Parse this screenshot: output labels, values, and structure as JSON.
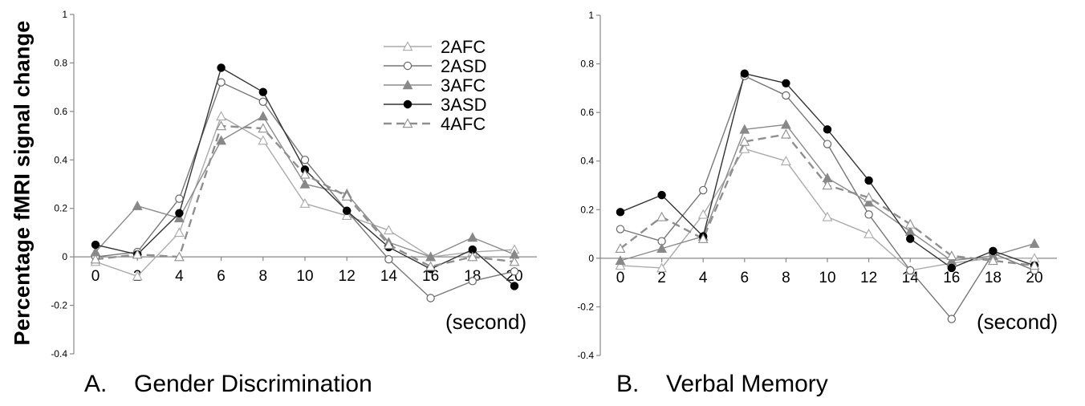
{
  "figure": {
    "ylabel": "Percentage fMRI signal change"
  },
  "chart_data": [
    {
      "type": "line",
      "panel_letter": "A.",
      "title": "Gender Discrimination",
      "xlabel": "(second)",
      "ylabel": "Percentage fMRI signal change",
      "xlim": [
        0,
        20
      ],
      "ylim": [
        -0.4,
        1
      ],
      "x_ticks": [
        0,
        2,
        4,
        6,
        8,
        10,
        12,
        14,
        16,
        18,
        20
      ],
      "y_ticks": [
        "-0.4",
        "-0.2",
        "0",
        "0.2",
        "0.4",
        "0.6",
        "0.8",
        "1"
      ],
      "grid": false,
      "legend_position": "top-right",
      "x": [
        0,
        2,
        4,
        6,
        8,
        10,
        12,
        14,
        16,
        18,
        20
      ],
      "series": [
        {
          "name": "2AFC",
          "marker": "triangle-open",
          "color": "#aaaaaa",
          "dashed": false,
          "values": [
            -0.02,
            -0.08,
            0.1,
            0.58,
            0.48,
            0.22,
            0.17,
            0.11,
            0.0,
            0.02,
            0.03
          ]
        },
        {
          "name": "2ASD",
          "marker": "circle-open",
          "color": "#777777",
          "dashed": false,
          "values": [
            0.0,
            0.02,
            0.24,
            0.72,
            0.64,
            0.4,
            0.19,
            -0.01,
            -0.17,
            -0.1,
            -0.06
          ]
        },
        {
          "name": "3AFC",
          "marker": "triangle-filled",
          "color": "#8a8a8a",
          "dashed": false,
          "values": [
            0.02,
            0.21,
            0.16,
            0.48,
            0.58,
            0.3,
            0.26,
            0.06,
            0.0,
            0.08,
            0.01
          ]
        },
        {
          "name": "3ASD",
          "marker": "circle-filled",
          "color": "#333333",
          "dashed": false,
          "values": [
            0.05,
            0.01,
            0.18,
            0.78,
            0.68,
            0.36,
            0.19,
            0.04,
            -0.05,
            0.03,
            -0.12
          ]
        },
        {
          "name": "4AFC",
          "marker": "triangle-open",
          "color": "#8f8f8f",
          "dashed": true,
          "values": [
            -0.01,
            0.01,
            0.0,
            0.54,
            0.53,
            0.34,
            0.25,
            0.05,
            -0.04,
            0.0,
            -0.02
          ]
        }
      ]
    },
    {
      "type": "line",
      "panel_letter": "B.",
      "title": "Verbal Memory",
      "xlabel": "(second)",
      "ylabel": "",
      "xlim": [
        0,
        20
      ],
      "ylim": [
        -0.4,
        1
      ],
      "x_ticks": [
        0,
        2,
        4,
        6,
        8,
        10,
        12,
        14,
        16,
        18,
        20
      ],
      "y_ticks": [
        "-0.4",
        "-0.2",
        "0",
        "0.2",
        "0.4",
        "0.6",
        "0.8",
        "1"
      ],
      "grid": false,
      "x": [
        0,
        2,
        4,
        6,
        8,
        10,
        12,
        14,
        16,
        18,
        20
      ],
      "series": [
        {
          "name": "2AFC",
          "marker": "triangle-open",
          "color": "#aaaaaa",
          "dashed": false,
          "values": [
            -0.03,
            -0.04,
            0.18,
            0.45,
            0.4,
            0.17,
            0.1,
            -0.05,
            -0.02,
            0.0,
            0.0
          ]
        },
        {
          "name": "2ASD",
          "marker": "circle-open",
          "color": "#777777",
          "dashed": false,
          "values": [
            0.12,
            0.07,
            0.28,
            0.75,
            0.67,
            0.47,
            0.18,
            -0.05,
            -0.25,
            0.02,
            -0.05
          ]
        },
        {
          "name": "3AFC",
          "marker": "triangle-filled",
          "color": "#8a8a8a",
          "dashed": false,
          "values": [
            -0.01,
            0.04,
            0.09,
            0.53,
            0.55,
            0.33,
            0.23,
            0.11,
            -0.01,
            0.01,
            0.06
          ]
        },
        {
          "name": "3ASD",
          "marker": "circle-filled",
          "color": "#333333",
          "dashed": false,
          "values": [
            0.19,
            0.26,
            0.09,
            0.76,
            0.72,
            0.53,
            0.32,
            0.08,
            -0.04,
            0.03,
            -0.03
          ]
        },
        {
          "name": "4AFC",
          "marker": "triangle-open",
          "color": "#8f8f8f",
          "dashed": true,
          "values": [
            0.04,
            0.17,
            0.08,
            0.48,
            0.51,
            0.3,
            0.25,
            0.14,
            0.01,
            -0.01,
            -0.03
          ]
        }
      ]
    }
  ]
}
